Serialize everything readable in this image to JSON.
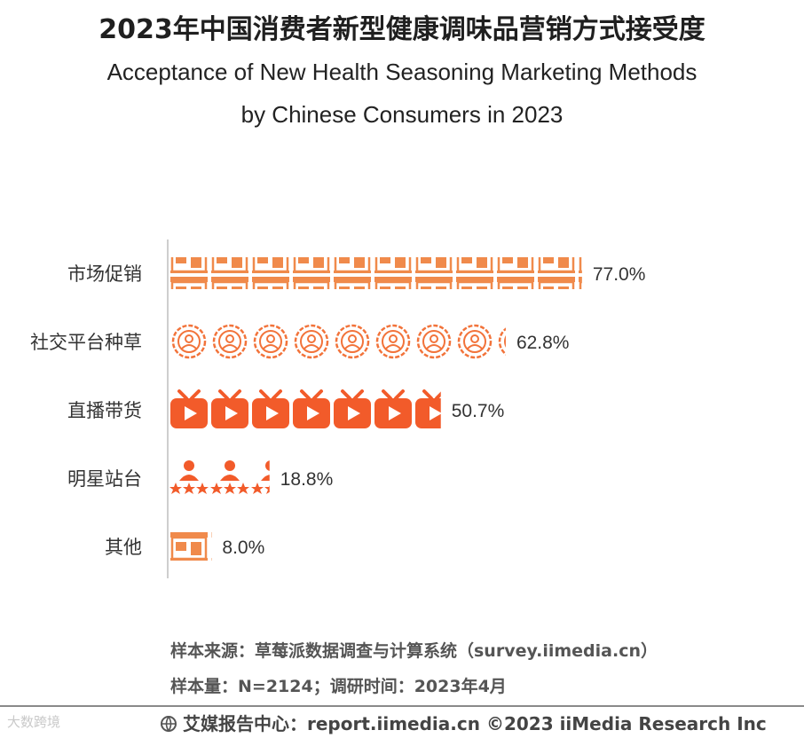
{
  "header": {
    "title_cn": "2023年中国消费者新型健康调味品营销方式接受度",
    "title_en_line1": "Acceptance of New Health Seasoning Marketing Methods",
    "title_en_line2": "by Chinese Consumers in 2023"
  },
  "chart_data": {
    "type": "bar",
    "orientation": "horizontal",
    "categories": [
      "市场促销",
      "社交平台种草",
      "直播带货",
      "明星站台",
      "其他"
    ],
    "values": [
      77.0,
      62.8,
      50.7,
      18.8,
      8.0
    ],
    "value_labels": [
      "77.0%",
      "62.8%",
      "50.7%",
      "18.8%",
      "8.0%"
    ],
    "unit": "%",
    "icons": [
      "storefront-icon",
      "social-user-icon",
      "live-play-icon",
      "star-person-icon",
      "storefront-icon"
    ],
    "colors": {
      "bar": "#f2733a",
      "bar_alt": "#f08a4b"
    },
    "xlim": [
      0,
      100
    ],
    "grid": false,
    "legend": "none"
  },
  "source": {
    "line1": "样本来源：草莓派数据调查与计算系统（survey.iimedia.cn）",
    "line2": "样本量：N=2124；调研时间：2023年4月"
  },
  "footer": {
    "text": "艾媒报告中心：report.iimedia.cn  ©2023  iiMedia Research  Inc",
    "watermark": "大数跨境"
  }
}
